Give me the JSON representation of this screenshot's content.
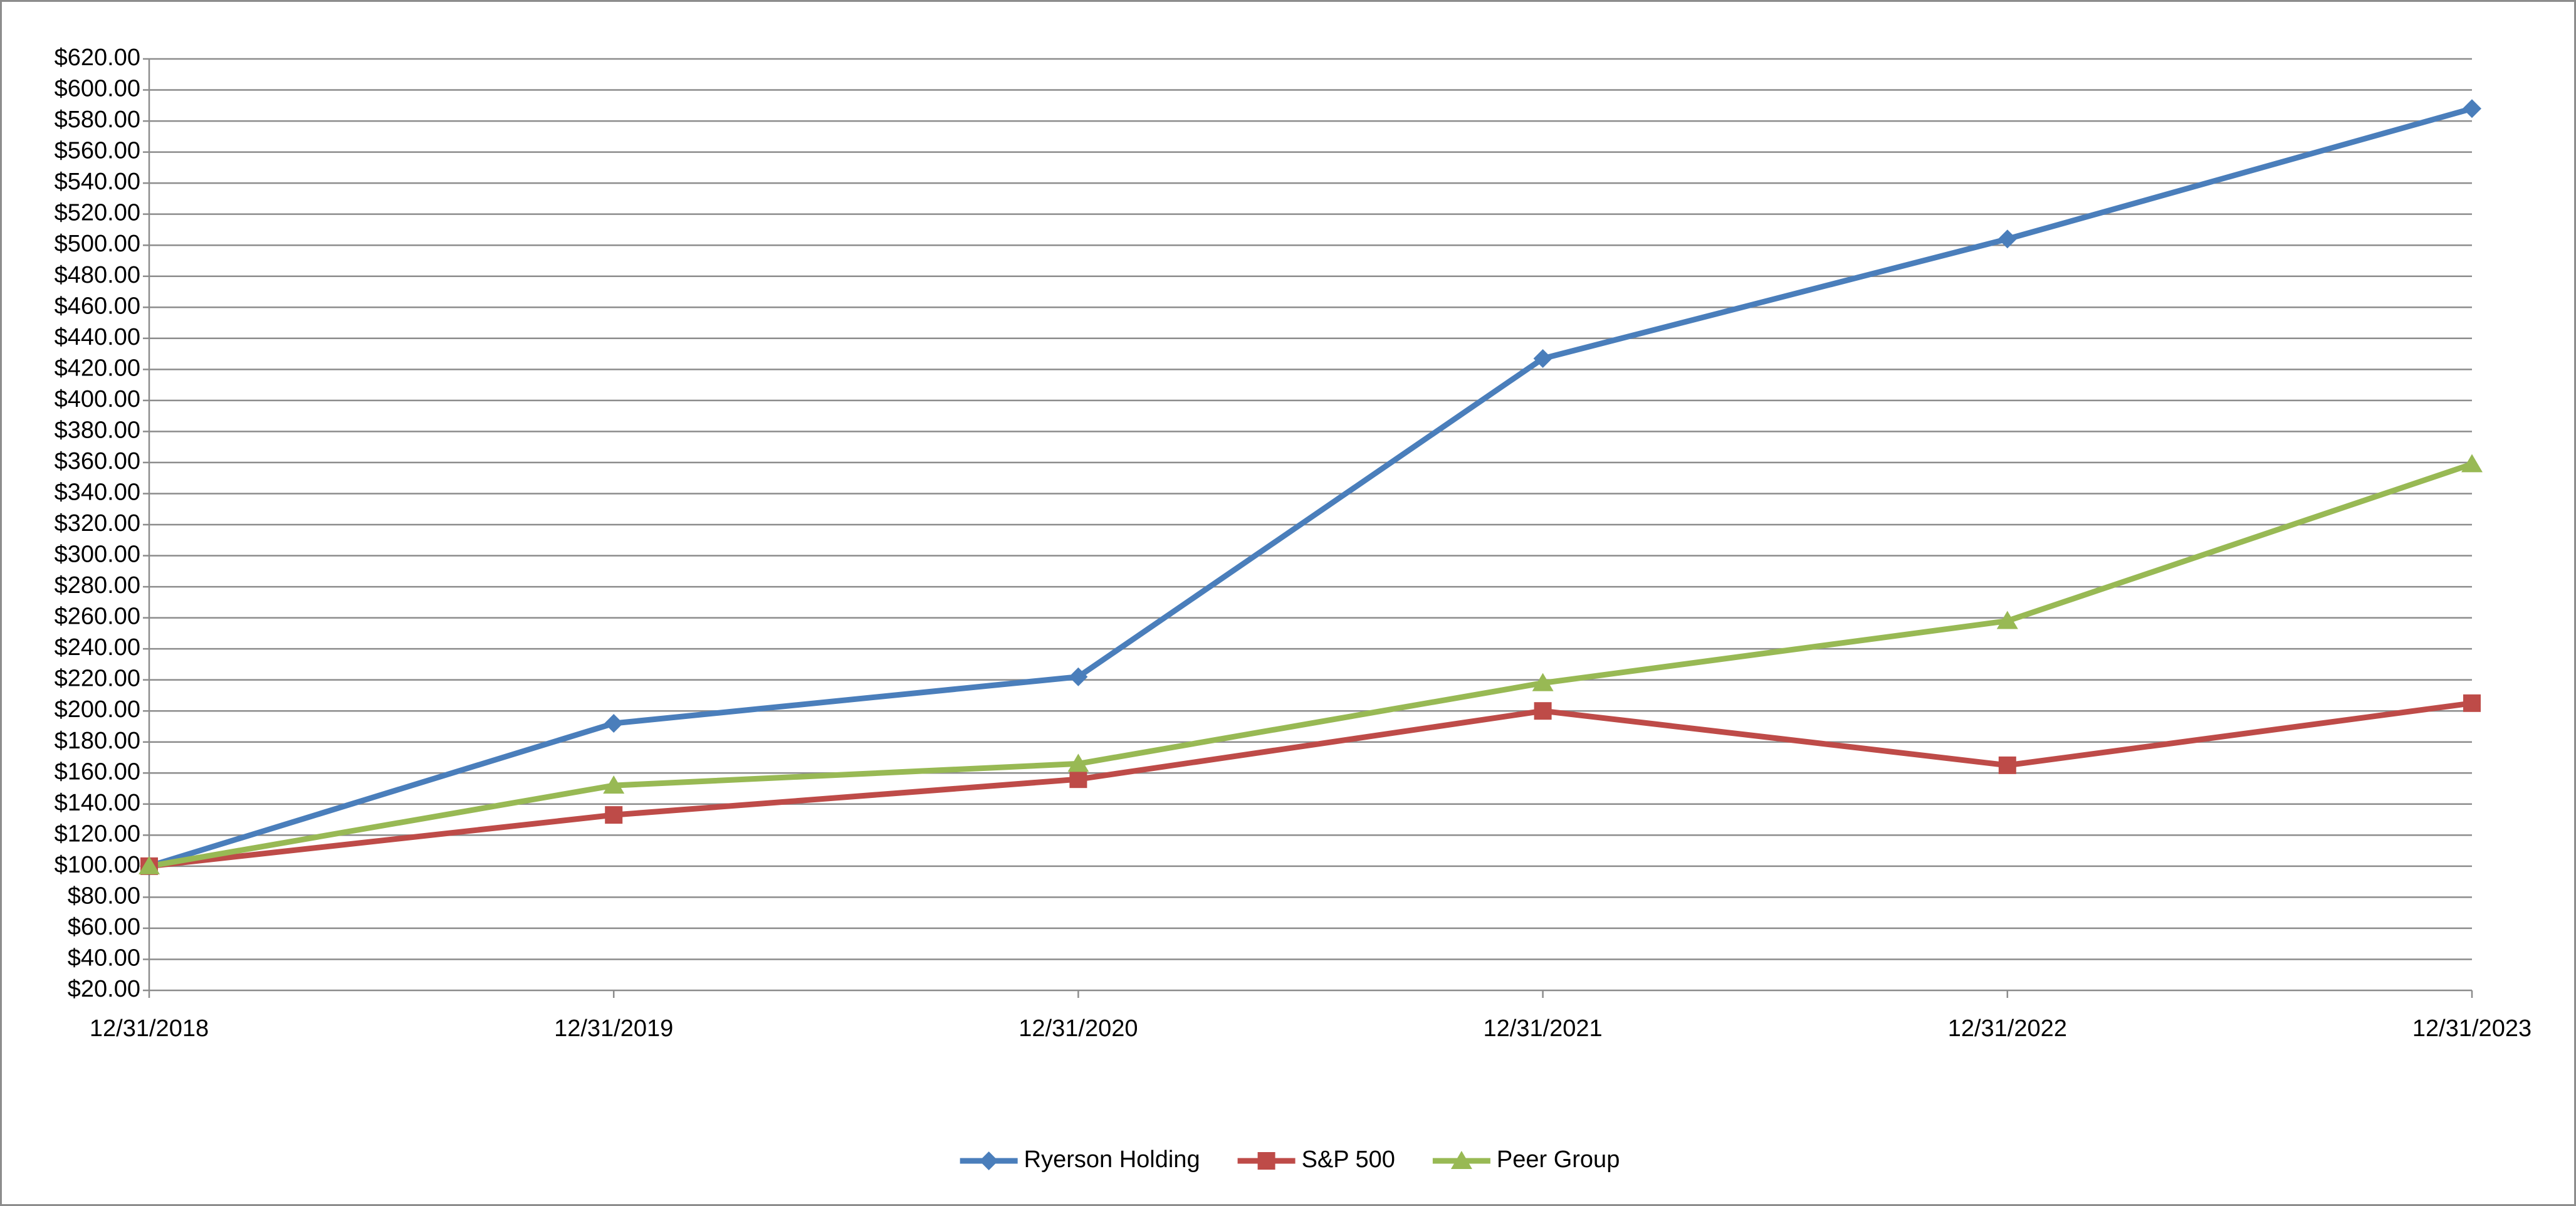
{
  "chart_data": {
    "type": "line",
    "categories": [
      "12/31/2018",
      "12/31/2019",
      "12/31/2020",
      "12/31/2021",
      "12/31/2022",
      "12/31/2023"
    ],
    "series": [
      {
        "name": "Ryerson Holding",
        "color": "#4a7ebb",
        "marker": "diamond",
        "values": [
          100,
          192,
          222,
          427,
          504,
          588
        ]
      },
      {
        "name": "S&P 500",
        "color": "#be4b48",
        "marker": "square",
        "values": [
          100,
          133,
          156,
          200,
          165,
          205
        ]
      },
      {
        "name": "Peer Group",
        "color": "#98b954",
        "marker": "triangle",
        "values": [
          100,
          152,
          166,
          218,
          258,
          359
        ]
      }
    ],
    "ylim": [
      20,
      620
    ],
    "yticks": [
      {
        "value": 20,
        "label": "$20.00"
      },
      {
        "value": 40,
        "label": "$40.00"
      },
      {
        "value": 60,
        "label": "$60.00"
      },
      {
        "value": 80,
        "label": "$80.00"
      },
      {
        "value": 100,
        "label": "$100.00"
      },
      {
        "value": 120,
        "label": "$120.00"
      },
      {
        "value": 140,
        "label": "$140.00"
      },
      {
        "value": 160,
        "label": "$160.00"
      },
      {
        "value": 180,
        "label": "$180.00"
      },
      {
        "value": 200,
        "label": "$200.00"
      },
      {
        "value": 220,
        "label": "$220.00"
      },
      {
        "value": 240,
        "label": "$240.00"
      },
      {
        "value": 260,
        "label": "$260.00"
      },
      {
        "value": 280,
        "label": "$280.00"
      },
      {
        "value": 300,
        "label": "$300.00"
      },
      {
        "value": 320,
        "label": "$320.00"
      },
      {
        "value": 340,
        "label": "$340.00"
      },
      {
        "value": 360,
        "label": "$360.00"
      },
      {
        "value": 380,
        "label": "$380.00"
      },
      {
        "value": 400,
        "label": "$400.00"
      },
      {
        "value": 420,
        "label": "$420.00"
      },
      {
        "value": 440,
        "label": "$440.00"
      },
      {
        "value": 460,
        "label": "$460.00"
      },
      {
        "value": 480,
        "label": "$480.00"
      },
      {
        "value": 500,
        "label": "$500.00"
      },
      {
        "value": 520,
        "label": "$520.00"
      },
      {
        "value": 540,
        "label": "$540.00"
      },
      {
        "value": 560,
        "label": "$560.00"
      },
      {
        "value": 580,
        "label": "$580.00"
      },
      {
        "value": 600,
        "label": "$600.00"
      },
      {
        "value": 620,
        "label": "$620.00"
      }
    ],
    "grid": true,
    "legend": "bottom"
  }
}
